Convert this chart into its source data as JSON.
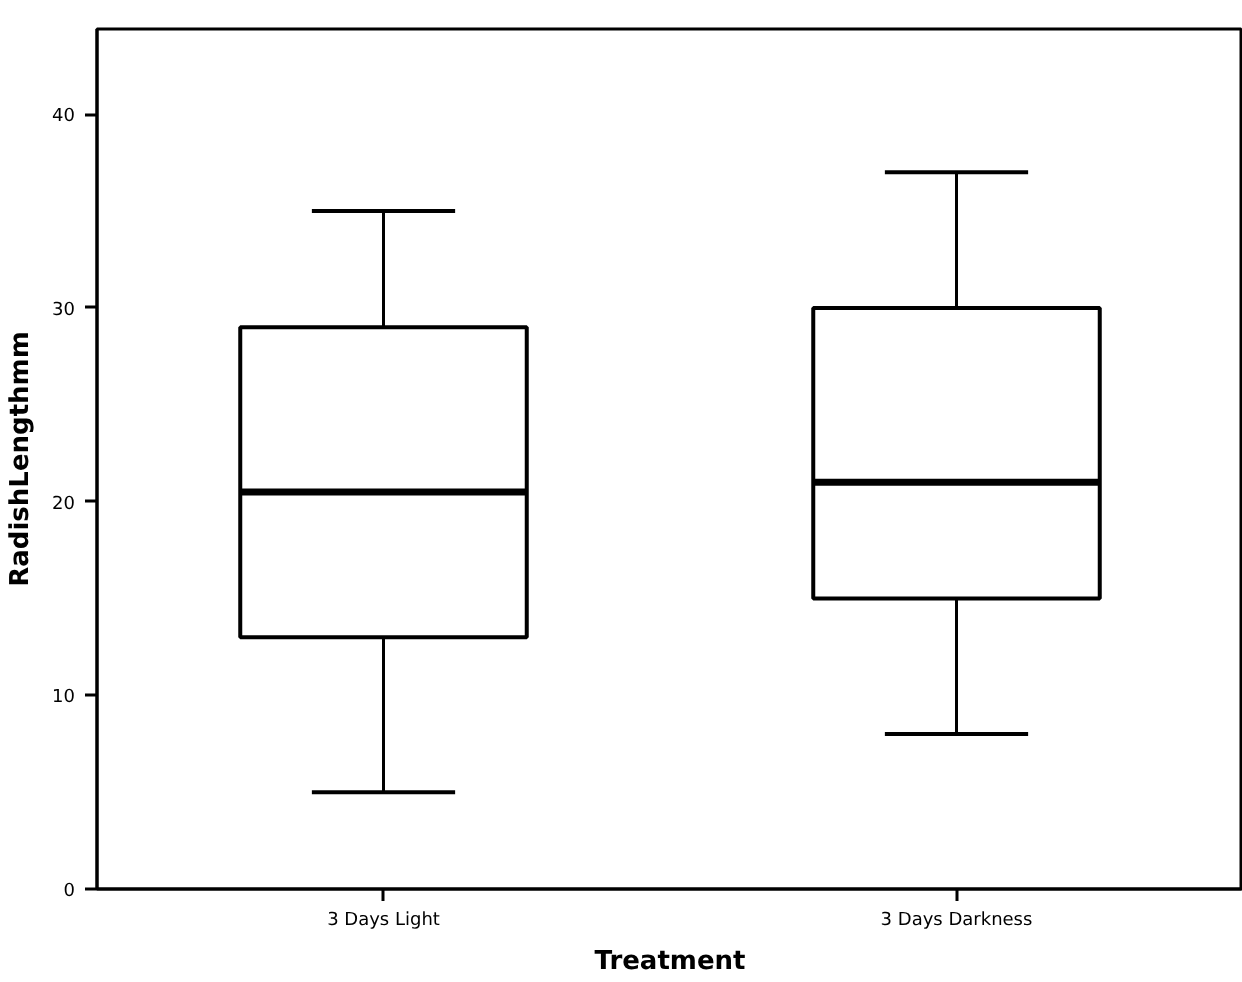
{
  "chart_data": {
    "type": "box",
    "xlabel": "Treatment",
    "ylabel": "RadishLengthmm",
    "categories": [
      "3 Days Light",
      "3 Days Darkness"
    ],
    "boxes": [
      {
        "low": 5,
        "q1": 13,
        "median": 20.5,
        "q3": 29,
        "high": 35
      },
      {
        "low": 8,
        "q1": 15,
        "median": 21,
        "q3": 30,
        "high": 37
      }
    ],
    "ylim": [
      0,
      44.4
    ],
    "yticks": [
      0,
      10,
      20,
      30,
      40
    ],
    "grid": false
  }
}
